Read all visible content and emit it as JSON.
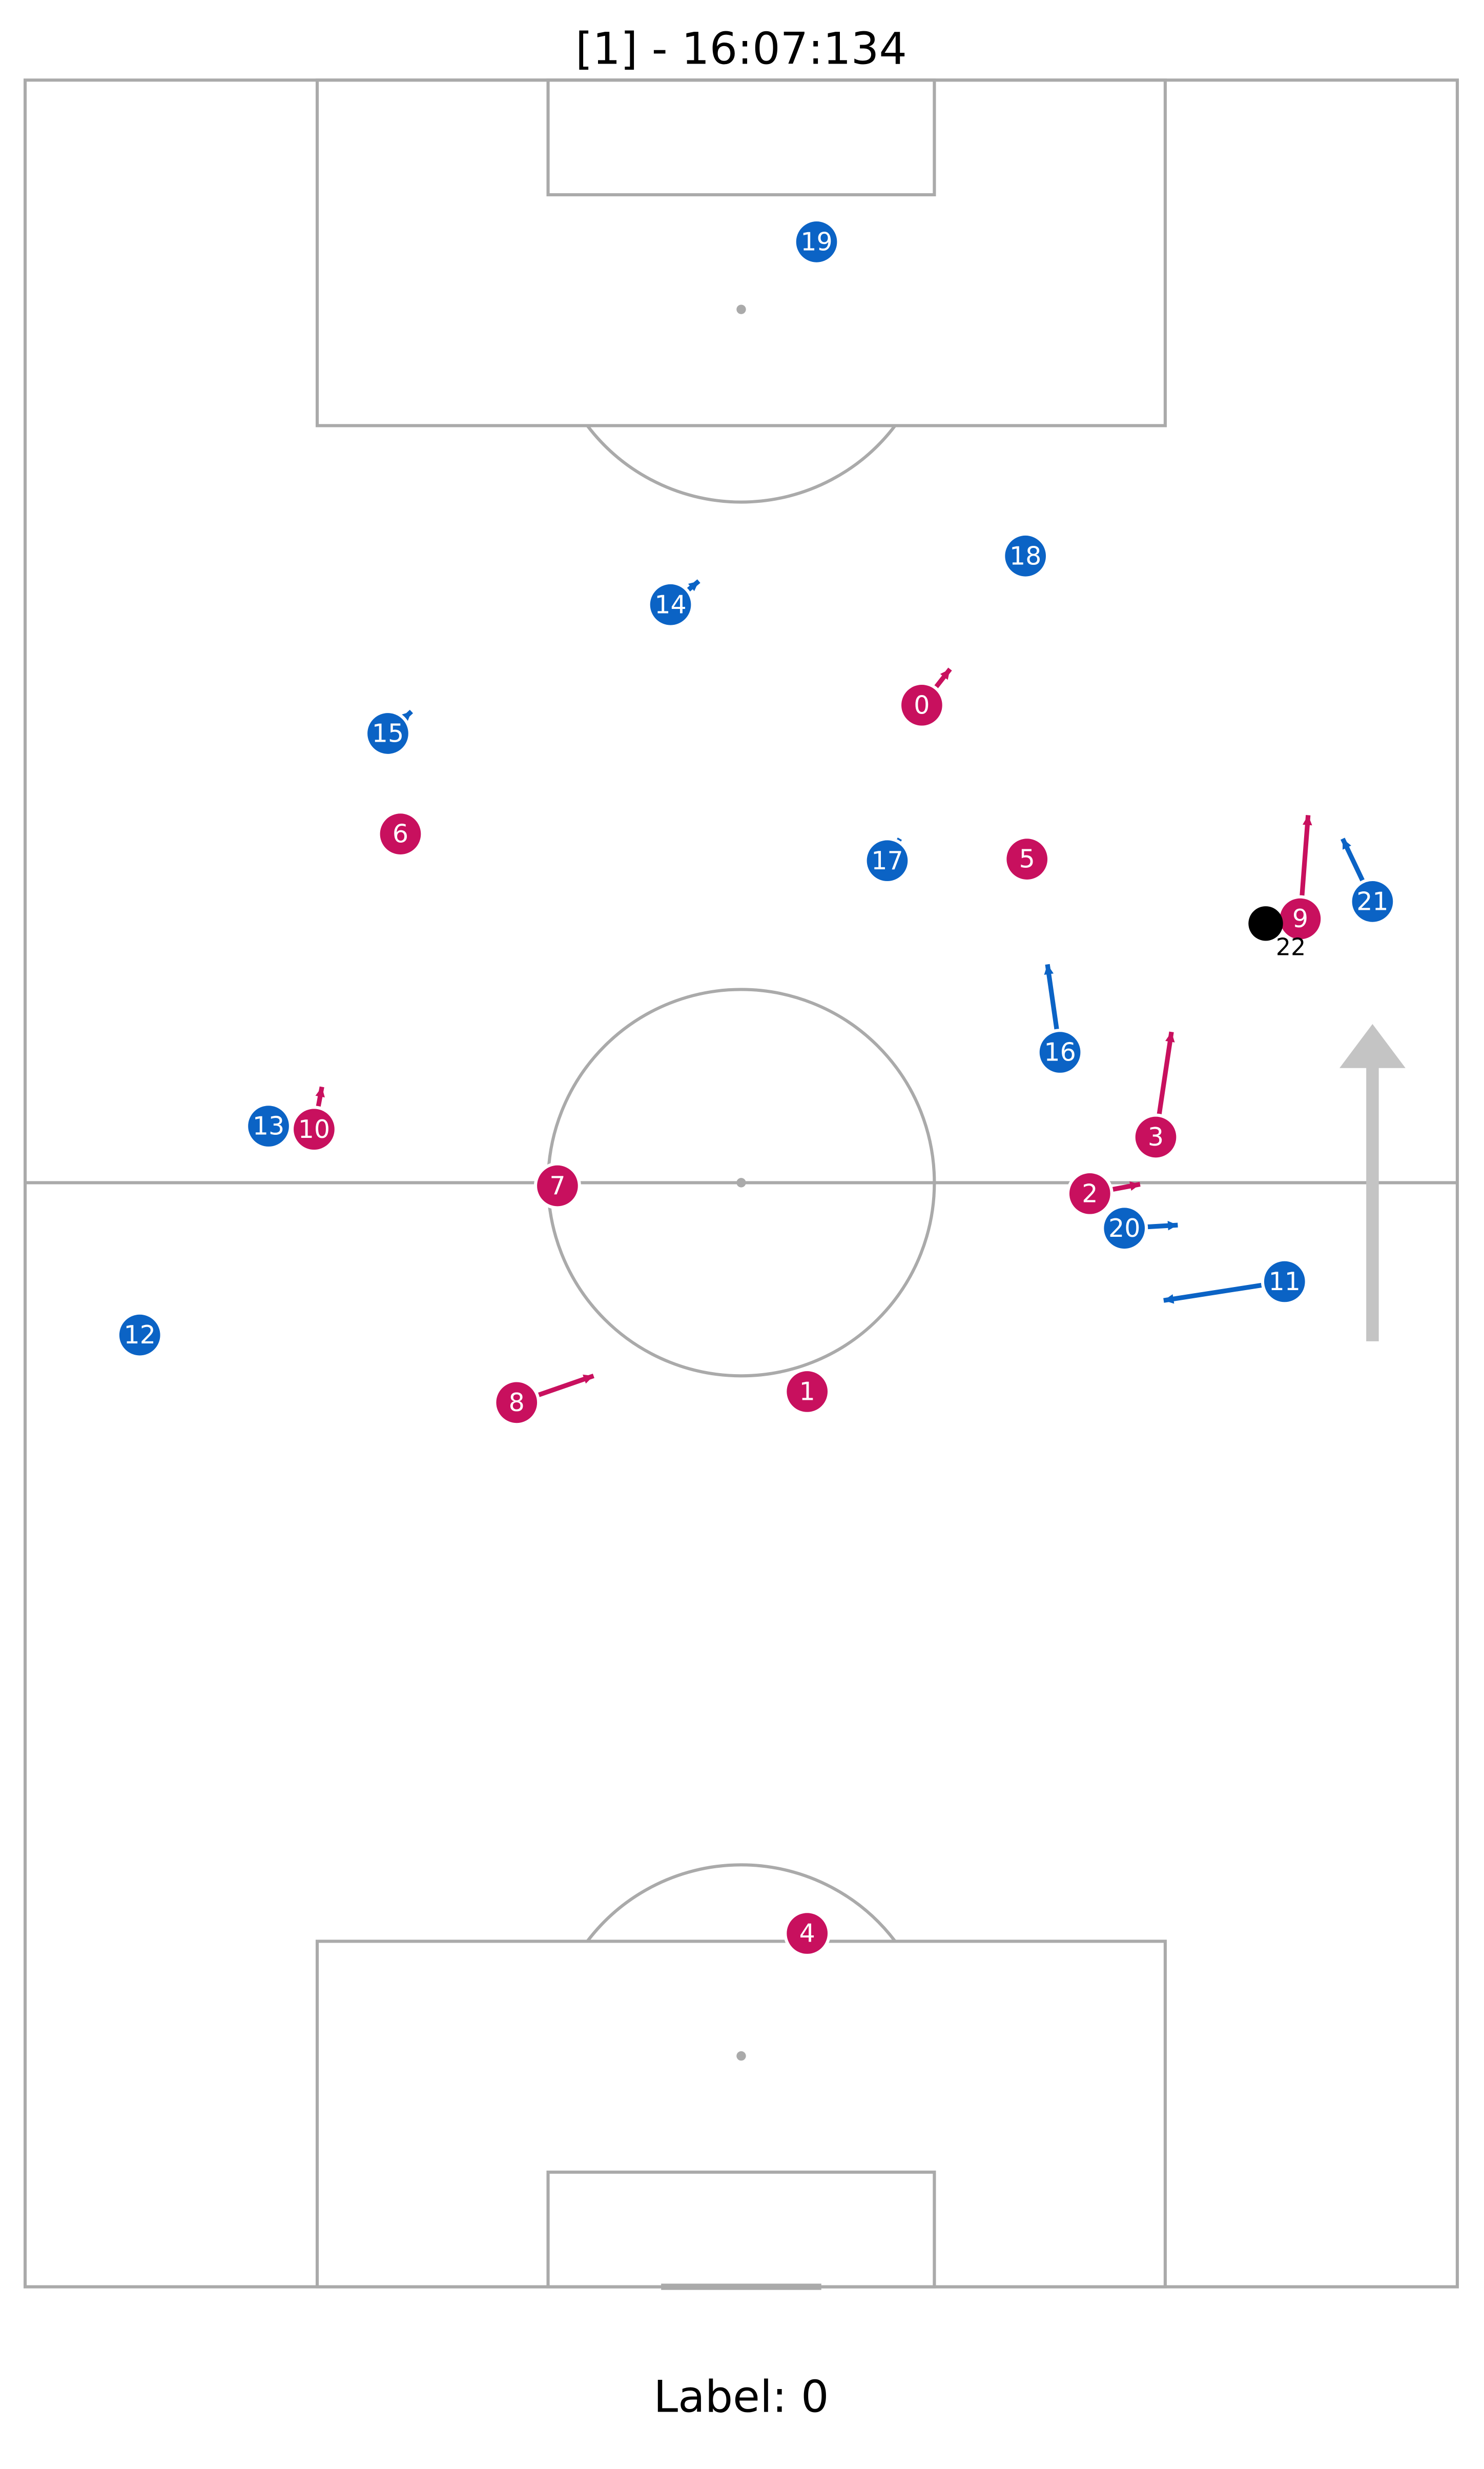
{
  "header": {
    "title": "[1] - 16:07:134"
  },
  "players": [
    {
      "label": "19"
    },
    {
      "label": "18"
    },
    {
      "label": "14"
    },
    {
      "label": "15"
    },
    {
      "label": "17"
    },
    {
      "label": "16"
    },
    {
      "label": "21"
    },
    {
      "label": "13"
    },
    {
      "label": "20"
    },
    {
      "label": "11"
    },
    {
      "label": "12"
    },
    {
      "label": "0"
    },
    {
      "label": "6"
    },
    {
      "label": "5"
    },
    {
      "label": "9"
    },
    {
      "label": "3"
    },
    {
      "label": "10"
    },
    {
      "label": "2"
    },
    {
      "label": "7"
    },
    {
      "label": "1"
    },
    {
      "label": "8"
    },
    {
      "label": "4"
    }
  ],
  "ball": {
    "label": "22"
  },
  "footer": {
    "label": "Label: 0"
  }
}
